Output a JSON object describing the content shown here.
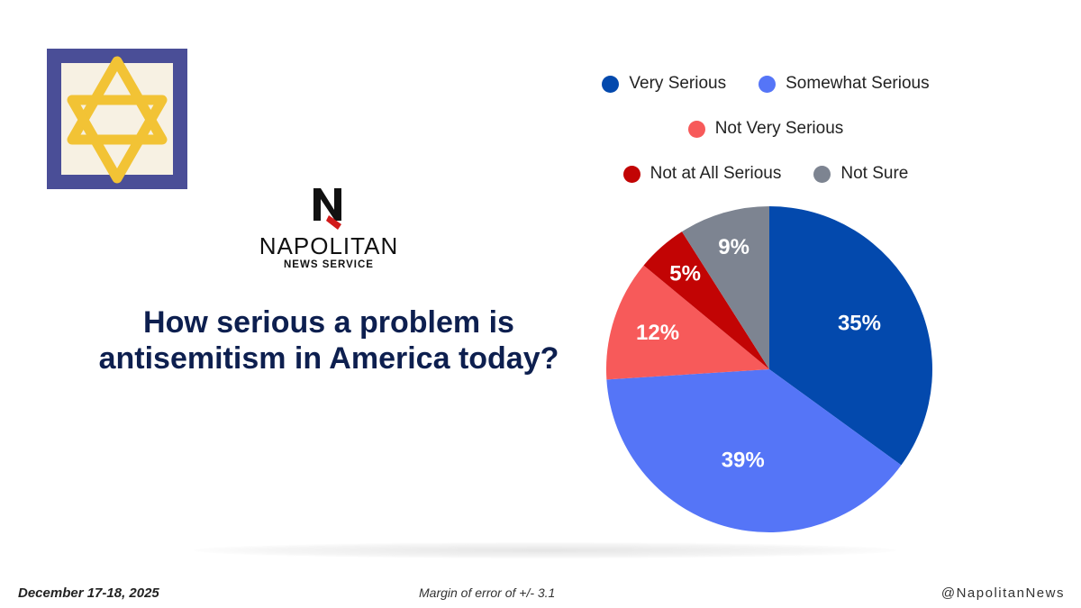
{
  "logo": {
    "letter": "N",
    "name": "NAPOLITAN",
    "subtitle": "NEWS SERVICE"
  },
  "question": "How serious a problem is antisemitism in America today?",
  "footer": {
    "date": "December 17-18, 2025",
    "margin_of_error": "Margin of error of +/- 3.1",
    "handle": "@NapolitanNews"
  },
  "colors": {
    "very_serious": "#0349ad",
    "somewhat_serious": "#5575f7",
    "not_very_serious": "#f75a5a",
    "not_at_all_serious": "#c20404",
    "not_sure": "#7d8491",
    "title_navy": "#0d1f4f",
    "star_gold": "#f2c335",
    "tile_border": "#4a4e97"
  },
  "legend": {
    "rows": [
      [
        "Very Serious",
        "Somewhat Serious"
      ],
      [
        "Not Very Serious"
      ],
      [
        "Not at All Serious",
        "Not Sure"
      ]
    ]
  },
  "chart_data": {
    "type": "pie",
    "title": "How serious a problem is antisemitism in America today?",
    "legend_position": "top",
    "start_angle": "12 o'clock, clockwise",
    "slices": [
      {
        "label": "Very Serious",
        "value": 35,
        "display": "35%",
        "color": "#0349ad"
      },
      {
        "label": "Somewhat Serious",
        "value": 39,
        "display": "39%",
        "color": "#5575f7"
      },
      {
        "label": "Not Very Serious",
        "value": 12,
        "display": "12%",
        "color": "#f75a5a"
      },
      {
        "label": "Not at All Serious",
        "value": 5,
        "display": "5%",
        "color": "#c20404"
      },
      {
        "label": "Not Sure",
        "value": 9,
        "display": "9%",
        "color": "#7d8491"
      }
    ]
  }
}
